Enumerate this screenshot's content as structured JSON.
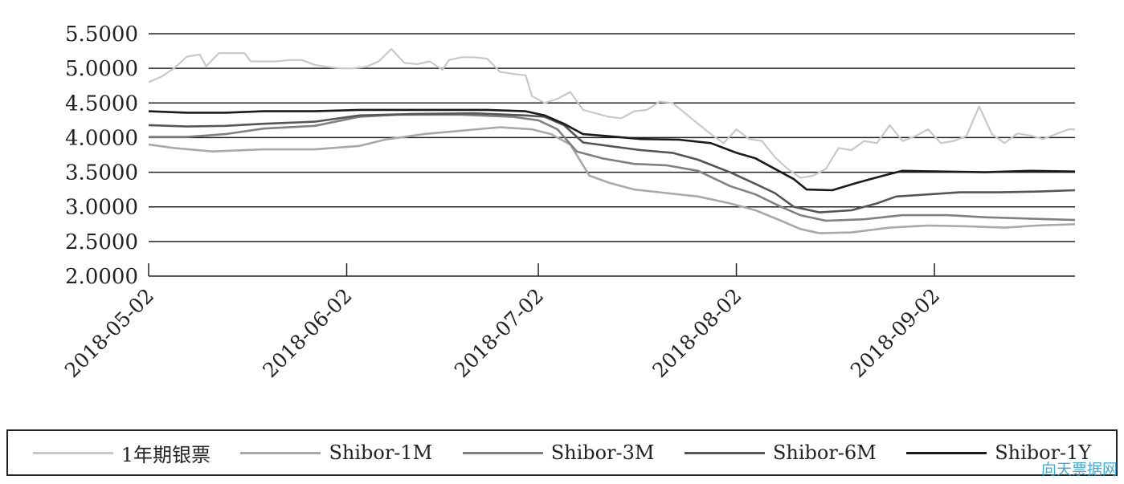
{
  "chart_data": {
    "type": "line",
    "title": "",
    "xlabel": "",
    "ylabel": "",
    "ylim": [
      2.0,
      5.5
    ],
    "yticks": [
      "2.0000",
      "2.5000",
      "3.0000",
      "3.5000",
      "4.0000",
      "4.5000",
      "5.0000",
      "5.5000"
    ],
    "xticks": [
      "2018-05-02",
      "2018-06-02",
      "2018-07-02",
      "2018-08-02",
      "2018-09-02"
    ],
    "x_range": [
      "2018-05-02",
      "2018-09-24"
    ],
    "grid": "horizontal",
    "legend_position": "bottom",
    "series": [
      {
        "name": "1年期银票",
        "color": "#c8c8c8",
        "points": [
          [
            "2018-05-02",
            4.8
          ],
          [
            "2018-05-04",
            4.88
          ],
          [
            "2018-05-06",
            5.0
          ],
          [
            "2018-05-08",
            5.17
          ],
          [
            "2018-05-10",
            5.2
          ],
          [
            "2018-05-11",
            5.03
          ],
          [
            "2018-05-13",
            5.22
          ],
          [
            "2018-05-15",
            5.22
          ],
          [
            "2018-05-17",
            5.22
          ],
          [
            "2018-05-18",
            5.1
          ],
          [
            "2018-05-20",
            5.1
          ],
          [
            "2018-05-22",
            5.1
          ],
          [
            "2018-05-24",
            5.12
          ],
          [
            "2018-05-26",
            5.12
          ],
          [
            "2018-05-28",
            5.05
          ],
          [
            "2018-05-30",
            5.02
          ],
          [
            "2018-06-01",
            5.0
          ],
          [
            "2018-06-03",
            5.0
          ],
          [
            "2018-06-05",
            5.02
          ],
          [
            "2018-06-07",
            5.1
          ],
          [
            "2018-06-09",
            5.28
          ],
          [
            "2018-06-11",
            5.08
          ],
          [
            "2018-06-13",
            5.06
          ],
          [
            "2018-06-15",
            5.1
          ],
          [
            "2018-06-17",
            4.98
          ],
          [
            "2018-06-18",
            5.12
          ],
          [
            "2018-06-20",
            5.16
          ],
          [
            "2018-06-22",
            5.16
          ],
          [
            "2018-06-24",
            5.14
          ],
          [
            "2018-06-26",
            4.95
          ],
          [
            "2018-06-28",
            4.92
          ],
          [
            "2018-06-30",
            4.9
          ],
          [
            "2018-07-01",
            4.6
          ],
          [
            "2018-07-03",
            4.5
          ],
          [
            "2018-07-05",
            4.56
          ],
          [
            "2018-07-07",
            4.66
          ],
          [
            "2018-07-09",
            4.4
          ],
          [
            "2018-07-11",
            4.35
          ],
          [
            "2018-07-13",
            4.3
          ],
          [
            "2018-07-15",
            4.28
          ],
          [
            "2018-07-17",
            4.38
          ],
          [
            "2018-07-19",
            4.4
          ],
          [
            "2018-07-21",
            4.52
          ],
          [
            "2018-07-23",
            4.5
          ],
          [
            "2018-07-25",
            4.35
          ],
          [
            "2018-07-27",
            4.2
          ],
          [
            "2018-07-29",
            4.05
          ],
          [
            "2018-07-31",
            3.92
          ],
          [
            "2018-08-02",
            4.12
          ],
          [
            "2018-08-04",
            3.98
          ],
          [
            "2018-08-06",
            3.95
          ],
          [
            "2018-08-08",
            3.72
          ],
          [
            "2018-08-10",
            3.55
          ],
          [
            "2018-08-12",
            3.42
          ],
          [
            "2018-08-14",
            3.45
          ],
          [
            "2018-08-16",
            3.55
          ],
          [
            "2018-08-18",
            3.85
          ],
          [
            "2018-08-20",
            3.82
          ],
          [
            "2018-08-22",
            3.95
          ],
          [
            "2018-08-24",
            3.92
          ],
          [
            "2018-08-26",
            4.18
          ],
          [
            "2018-08-28",
            3.95
          ],
          [
            "2018-08-30",
            4.02
          ],
          [
            "2018-09-01",
            4.12
          ],
          [
            "2018-09-03",
            3.92
          ],
          [
            "2018-09-05",
            3.95
          ],
          [
            "2018-09-07",
            4.02
          ],
          [
            "2018-09-09",
            4.45
          ],
          [
            "2018-09-11",
            4.05
          ],
          [
            "2018-09-13",
            3.92
          ],
          [
            "2018-09-15",
            4.06
          ],
          [
            "2018-09-17",
            4.03
          ],
          [
            "2018-09-19",
            3.98
          ],
          [
            "2018-09-21",
            4.05
          ],
          [
            "2018-09-23",
            4.12
          ],
          [
            "2018-09-24",
            4.12
          ]
        ]
      },
      {
        "name": "Shibor-1M",
        "color": "#a9a9a9",
        "points": [
          [
            "2018-05-02",
            3.9
          ],
          [
            "2018-05-06",
            3.85
          ],
          [
            "2018-05-12",
            3.8
          ],
          [
            "2018-05-20",
            3.83
          ],
          [
            "2018-05-28",
            3.83
          ],
          [
            "2018-06-04",
            3.88
          ],
          [
            "2018-06-08",
            3.97
          ],
          [
            "2018-06-14",
            4.05
          ],
          [
            "2018-06-20",
            4.1
          ],
          [
            "2018-06-26",
            4.15
          ],
          [
            "2018-07-01",
            4.12
          ],
          [
            "2018-07-04",
            4.05
          ],
          [
            "2018-07-07",
            3.9
          ],
          [
            "2018-07-10",
            3.45
          ],
          [
            "2018-07-13",
            3.35
          ],
          [
            "2018-07-17",
            3.25
          ],
          [
            "2018-07-22",
            3.2
          ],
          [
            "2018-07-27",
            3.15
          ],
          [
            "2018-08-01",
            3.05
          ],
          [
            "2018-08-05",
            2.95
          ],
          [
            "2018-08-09",
            2.8
          ],
          [
            "2018-08-12",
            2.68
          ],
          [
            "2018-08-15",
            2.62
          ],
          [
            "2018-08-20",
            2.63
          ],
          [
            "2018-08-26",
            2.7
          ],
          [
            "2018-09-01",
            2.73
          ],
          [
            "2018-09-07",
            2.72
          ],
          [
            "2018-09-13",
            2.7
          ],
          [
            "2018-09-18",
            2.73
          ],
          [
            "2018-09-24",
            2.75
          ]
        ]
      },
      {
        "name": "Shibor-3M",
        "color": "#808080",
        "points": [
          [
            "2018-05-02",
            4.01
          ],
          [
            "2018-05-08",
            4.01
          ],
          [
            "2018-05-14",
            4.05
          ],
          [
            "2018-05-20",
            4.13
          ],
          [
            "2018-05-28",
            4.17
          ],
          [
            "2018-06-04",
            4.3
          ],
          [
            "2018-06-10",
            4.33
          ],
          [
            "2018-06-20",
            4.33
          ],
          [
            "2018-06-28",
            4.3
          ],
          [
            "2018-07-02",
            4.25
          ],
          [
            "2018-07-05",
            4.12
          ],
          [
            "2018-07-08",
            3.8
          ],
          [
            "2018-07-12",
            3.7
          ],
          [
            "2018-07-17",
            3.62
          ],
          [
            "2018-07-22",
            3.6
          ],
          [
            "2018-07-27",
            3.52
          ],
          [
            "2018-08-01",
            3.3
          ],
          [
            "2018-08-05",
            3.18
          ],
          [
            "2018-08-09",
            3.0
          ],
          [
            "2018-08-12",
            2.88
          ],
          [
            "2018-08-16",
            2.8
          ],
          [
            "2018-08-22",
            2.82
          ],
          [
            "2018-08-28",
            2.88
          ],
          [
            "2018-09-04",
            2.88
          ],
          [
            "2018-09-10",
            2.85
          ],
          [
            "2018-09-17",
            2.83
          ],
          [
            "2018-09-24",
            2.81
          ]
        ]
      },
      {
        "name": "Shibor-6M",
        "color": "#555555",
        "points": [
          [
            "2018-05-02",
            4.18
          ],
          [
            "2018-05-08",
            4.16
          ],
          [
            "2018-05-14",
            4.17
          ],
          [
            "2018-05-20",
            4.2
          ],
          [
            "2018-05-28",
            4.23
          ],
          [
            "2018-06-04",
            4.32
          ],
          [
            "2018-06-12",
            4.34
          ],
          [
            "2018-06-22",
            4.35
          ],
          [
            "2018-06-30",
            4.32
          ],
          [
            "2018-07-03",
            4.3
          ],
          [
            "2018-07-06",
            4.18
          ],
          [
            "2018-07-09",
            3.93
          ],
          [
            "2018-07-13",
            3.88
          ],
          [
            "2018-07-18",
            3.82
          ],
          [
            "2018-07-23",
            3.78
          ],
          [
            "2018-07-27",
            3.68
          ],
          [
            "2018-08-01",
            3.5
          ],
          [
            "2018-08-05",
            3.33
          ],
          [
            "2018-08-08",
            3.2
          ],
          [
            "2018-08-11",
            3.0
          ],
          [
            "2018-08-15",
            2.92
          ],
          [
            "2018-08-20",
            2.95
          ],
          [
            "2018-08-24",
            3.05
          ],
          [
            "2018-08-27",
            3.15
          ],
          [
            "2018-09-01",
            3.18
          ],
          [
            "2018-09-06",
            3.21
          ],
          [
            "2018-09-12",
            3.21
          ],
          [
            "2018-09-18",
            3.22
          ],
          [
            "2018-09-24",
            3.24
          ]
        ]
      },
      {
        "name": "Shibor-1Y",
        "color": "#1a1a1a",
        "points": [
          [
            "2018-05-02",
            4.38
          ],
          [
            "2018-05-08",
            4.36
          ],
          [
            "2018-05-14",
            4.36
          ],
          [
            "2018-05-20",
            4.38
          ],
          [
            "2018-05-28",
            4.38
          ],
          [
            "2018-06-04",
            4.4
          ],
          [
            "2018-06-14",
            4.4
          ],
          [
            "2018-06-24",
            4.4
          ],
          [
            "2018-06-30",
            4.38
          ],
          [
            "2018-07-03",
            4.32
          ],
          [
            "2018-07-06",
            4.2
          ],
          [
            "2018-07-09",
            4.05
          ],
          [
            "2018-07-13",
            4.02
          ],
          [
            "2018-07-18",
            3.98
          ],
          [
            "2018-07-24",
            3.97
          ],
          [
            "2018-07-29",
            3.92
          ],
          [
            "2018-08-02",
            3.78
          ],
          [
            "2018-08-05",
            3.7
          ],
          [
            "2018-08-08",
            3.55
          ],
          [
            "2018-08-11",
            3.4
          ],
          [
            "2018-08-13",
            3.25
          ],
          [
            "2018-08-17",
            3.24
          ],
          [
            "2018-08-21",
            3.35
          ],
          [
            "2018-08-25",
            3.45
          ],
          [
            "2018-08-28",
            3.52
          ],
          [
            "2018-09-03",
            3.51
          ],
          [
            "2018-09-10",
            3.5
          ],
          [
            "2018-09-17",
            3.52
          ],
          [
            "2018-09-24",
            3.51
          ]
        ]
      }
    ]
  },
  "watermark": "向天票据网"
}
